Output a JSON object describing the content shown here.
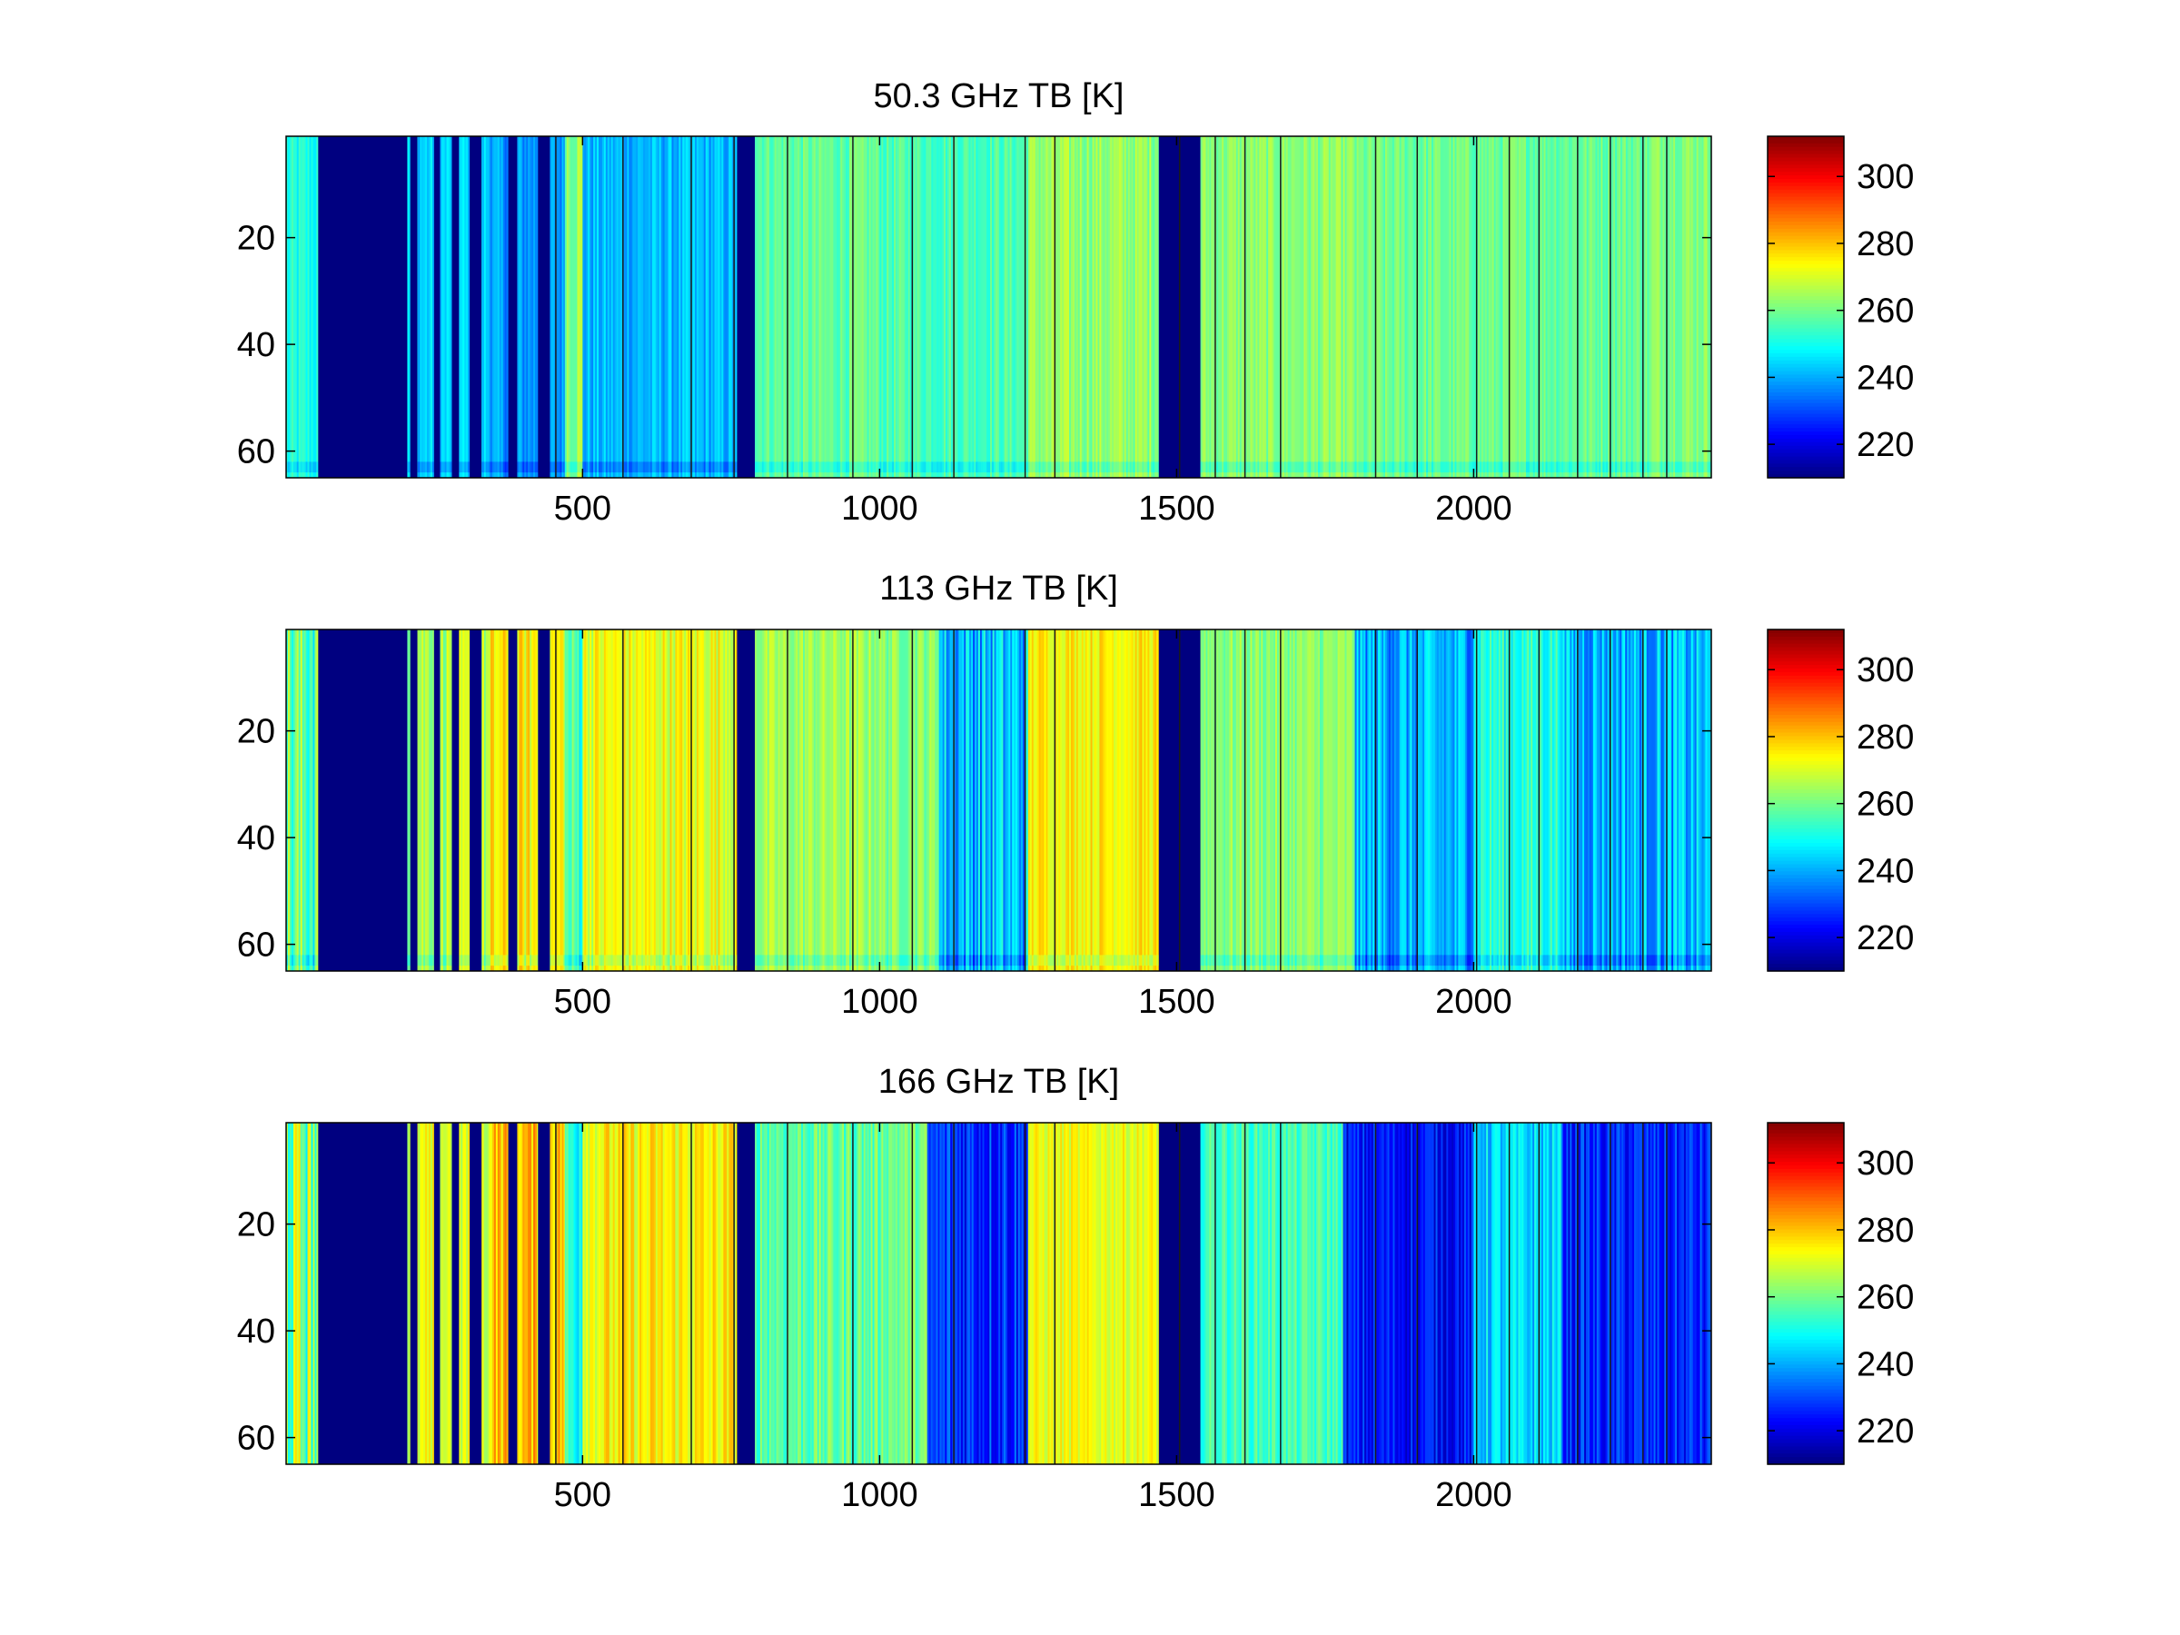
{
  "chart_data": [
    {
      "type": "heatmap",
      "title": "50.3 GHz TB [K]",
      "xlim": [
        1,
        2400
      ],
      "ylim": [
        1,
        65
      ],
      "y_reversed": true,
      "x_ticks": [
        500,
        1000,
        1500,
        2000
      ],
      "y_ticks": [
        20,
        40,
        60
      ],
      "colorbar": {
        "colormap": "jet",
        "clim": [
          210,
          312
        ],
        "ticks": [
          220,
          240,
          260,
          280,
          300
        ]
      },
      "columns": [
        {
          "x0": 1,
          "x1": 55,
          "value": 250,
          "range": 6
        },
        {
          "x0": 55,
          "x1": 205,
          "value": 210,
          "range": 0
        },
        {
          "x0": 205,
          "x1": 345,
          "value": 244,
          "range": 6
        },
        {
          "x0": 345,
          "x1": 470,
          "value": 238,
          "range": 6
        },
        {
          "x0": 470,
          "x1": 500,
          "value": 264,
          "range": 8
        },
        {
          "x0": 500,
          "x1": 760,
          "value": 241,
          "range": 6
        },
        {
          "x0": 760,
          "x1": 790,
          "value": 210,
          "range": 0
        },
        {
          "x0": 790,
          "x1": 1000,
          "value": 258,
          "range": 5
        },
        {
          "x0": 1000,
          "x1": 1250,
          "value": 256,
          "range": 5
        },
        {
          "x0": 1250,
          "x1": 1470,
          "value": 263,
          "range": 6
        },
        {
          "x0": 1470,
          "x1": 1540,
          "value": 210,
          "range": 0
        },
        {
          "x0": 1540,
          "x1": 1800,
          "value": 262,
          "range": 5
        },
        {
          "x0": 1800,
          "x1": 2300,
          "value": 259,
          "range": 5
        },
        {
          "x0": 2300,
          "x1": 2400,
          "value": 262,
          "range": 5
        }
      ],
      "narrow_stripes": [
        {
          "x": 210,
          "width": 12,
          "value": 210
        },
        {
          "x": 250,
          "width": 10,
          "value": 210
        },
        {
          "x": 280,
          "width": 12,
          "value": 210
        },
        {
          "x": 310,
          "width": 20,
          "value": 210
        },
        {
          "x": 375,
          "width": 15,
          "value": 210
        },
        {
          "x": 425,
          "width": 20,
          "value": 210
        }
      ],
      "low_band_rows": [
        62,
        63
      ],
      "separator_lines": [
        455,
        568,
        683,
        755,
        845,
        955,
        1055,
        1125,
        1245,
        1295,
        1505,
        1565,
        1615,
        1675,
        1835,
        1905,
        2005,
        2060,
        2110,
        2175,
        2230,
        2285,
        2325
      ]
    },
    {
      "type": "heatmap",
      "title": "113 GHz TB [K]",
      "xlim": [
        1,
        2400
      ],
      "ylim": [
        1,
        65
      ],
      "y_reversed": true,
      "x_ticks": [
        500,
        1000,
        1500,
        2000
      ],
      "y_ticks": [
        20,
        40,
        60
      ],
      "colorbar": {
        "colormap": "jet",
        "clim": [
          210,
          312
        ],
        "ticks": [
          220,
          240,
          260,
          280,
          300
        ]
      },
      "columns": [
        {
          "x0": 1,
          "x1": 55,
          "value": 258,
          "range": 14
        },
        {
          "x0": 55,
          "x1": 205,
          "value": 210,
          "range": 0
        },
        {
          "x0": 205,
          "x1": 345,
          "value": 266,
          "range": 8
        },
        {
          "x0": 345,
          "x1": 470,
          "value": 274,
          "range": 8
        },
        {
          "x0": 470,
          "x1": 500,
          "value": 255,
          "range": 10
        },
        {
          "x0": 500,
          "x1": 760,
          "value": 272,
          "range": 8
        },
        {
          "x0": 760,
          "x1": 790,
          "value": 210,
          "range": 0
        },
        {
          "x0": 790,
          "x1": 1000,
          "value": 264,
          "range": 6
        },
        {
          "x0": 1000,
          "x1": 1100,
          "value": 262,
          "range": 6
        },
        {
          "x0": 1100,
          "x1": 1250,
          "value": 242,
          "range": 12
        },
        {
          "x0": 1250,
          "x1": 1470,
          "value": 275,
          "range": 6
        },
        {
          "x0": 1470,
          "x1": 1540,
          "value": 210,
          "range": 0
        },
        {
          "x0": 1540,
          "x1": 1800,
          "value": 262,
          "range": 6
        },
        {
          "x0": 1800,
          "x1": 2000,
          "value": 240,
          "range": 10
        },
        {
          "x0": 2000,
          "x1": 2150,
          "value": 252,
          "range": 8
        },
        {
          "x0": 2150,
          "x1": 2400,
          "value": 241,
          "range": 10
        }
      ],
      "narrow_stripes": [
        {
          "x": 210,
          "width": 12,
          "value": 210
        },
        {
          "x": 250,
          "width": 10,
          "value": 210
        },
        {
          "x": 280,
          "width": 12,
          "value": 210
        },
        {
          "x": 310,
          "width": 20,
          "value": 210
        },
        {
          "x": 375,
          "width": 15,
          "value": 210
        },
        {
          "x": 425,
          "width": 20,
          "value": 210
        }
      ],
      "low_band_rows": [
        62,
        63
      ],
      "separator_lines": [
        455,
        568,
        683,
        755,
        845,
        955,
        1055,
        1125,
        1245,
        1295,
        1505,
        1565,
        1615,
        1675,
        1835,
        1905,
        2005,
        2060,
        2110,
        2175,
        2230,
        2285,
        2325
      ]
    },
    {
      "type": "heatmap",
      "title": "166 GHz TB [K]",
      "xlim": [
        1,
        2400
      ],
      "ylim": [
        1,
        65
      ],
      "y_reversed": true,
      "x_ticks": [
        500,
        1000,
        1500,
        2000
      ],
      "y_ticks": [
        20,
        40,
        60
      ],
      "colorbar": {
        "colormap": "jet",
        "clim": [
          210,
          312
        ],
        "ticks": [
          220,
          240,
          260,
          280,
          300
        ]
      },
      "columns": [
        {
          "x0": 1,
          "x1": 55,
          "value": 262,
          "range": 16
        },
        {
          "x0": 55,
          "x1": 205,
          "value": 210,
          "range": 0
        },
        {
          "x0": 205,
          "x1": 345,
          "value": 270,
          "range": 8
        },
        {
          "x0": 345,
          "x1": 470,
          "value": 280,
          "range": 8
        },
        {
          "x0": 470,
          "x1": 500,
          "value": 252,
          "range": 10
        },
        {
          "x0": 500,
          "x1": 760,
          "value": 274,
          "range": 8
        },
        {
          "x0": 760,
          "x1": 790,
          "value": 210,
          "range": 0
        },
        {
          "x0": 790,
          "x1": 1000,
          "value": 258,
          "range": 8
        },
        {
          "x0": 1000,
          "x1": 1080,
          "value": 260,
          "range": 6
        },
        {
          "x0": 1080,
          "x1": 1250,
          "value": 228,
          "range": 10
        },
        {
          "x0": 1250,
          "x1": 1470,
          "value": 272,
          "range": 6
        },
        {
          "x0": 1470,
          "x1": 1540,
          "value": 210,
          "range": 0
        },
        {
          "x0": 1540,
          "x1": 1780,
          "value": 255,
          "range": 6
        },
        {
          "x0": 1780,
          "x1": 2000,
          "value": 224,
          "range": 8
        },
        {
          "x0": 2000,
          "x1": 2150,
          "value": 244,
          "range": 8
        },
        {
          "x0": 2150,
          "x1": 2400,
          "value": 226,
          "range": 8
        }
      ],
      "narrow_stripes": [
        {
          "x": 210,
          "width": 12,
          "value": 210
        },
        {
          "x": 250,
          "width": 10,
          "value": 210
        },
        {
          "x": 280,
          "width": 12,
          "value": 210
        },
        {
          "x": 310,
          "width": 20,
          "value": 210
        },
        {
          "x": 375,
          "width": 15,
          "value": 210
        },
        {
          "x": 425,
          "width": 20,
          "value": 210
        }
      ],
      "low_band_rows": [],
      "separator_lines": [
        455,
        568,
        683,
        755,
        845,
        955,
        1055,
        1125,
        1245,
        1295,
        1505,
        1565,
        1615,
        1675,
        1835,
        1905,
        2005,
        2060,
        2110,
        2175,
        2230,
        2285,
        2325
      ]
    }
  ]
}
